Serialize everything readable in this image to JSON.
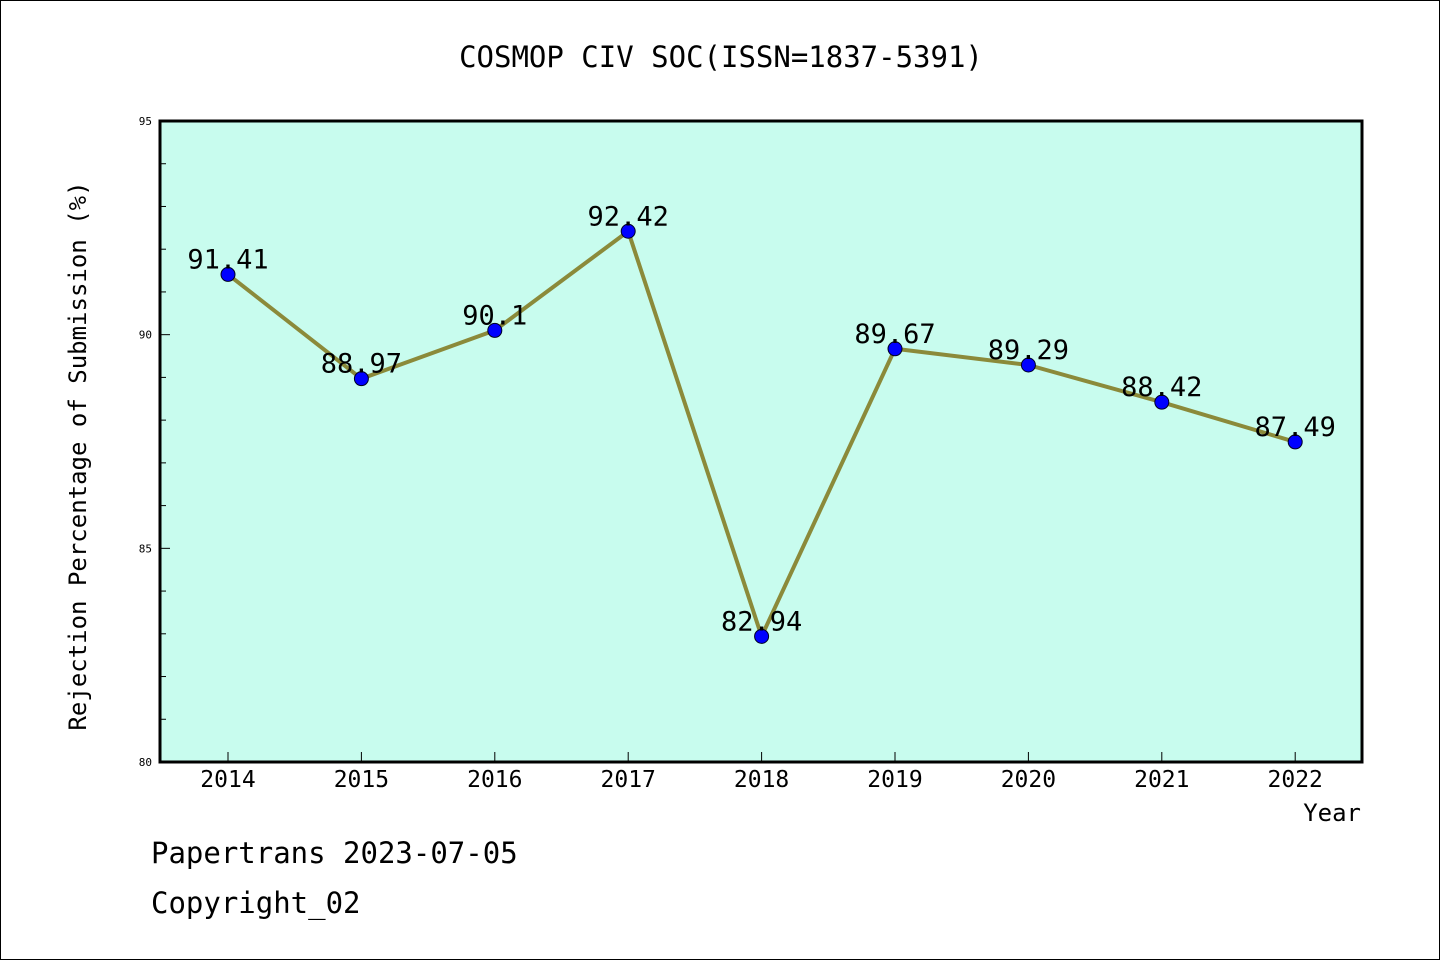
{
  "chart_data": {
    "type": "line",
    "title": "COSMOP CIV SOC(ISSN=1837-5391)",
    "xlabel": "Year",
    "ylabel": "Rejection Percentage of Submission (%)",
    "categories": [
      "2014",
      "2015",
      "2016",
      "2017",
      "2018",
      "2019",
      "2020",
      "2021",
      "2022"
    ],
    "values": [
      91.41,
      88.97,
      90.1,
      92.42,
      82.94,
      89.67,
      89.29,
      88.42,
      87.49
    ],
    "value_labels": [
      "91.41",
      "88.97",
      "90.1",
      "92.42",
      "82.94",
      "89.67",
      "89.29",
      "88.42",
      "87.49"
    ],
    "ylim": [
      80,
      95
    ],
    "yticks": [
      "80",
      "85",
      "90",
      "95"
    ],
    "grid": false,
    "legend": "none",
    "colors": {
      "plot_background": "#c8fcee",
      "line": "#8b8a3a",
      "marker": "#0000ff"
    }
  },
  "footer": {
    "line1": "Papertrans 2023-07-05",
    "line2": "Copyright_02"
  }
}
